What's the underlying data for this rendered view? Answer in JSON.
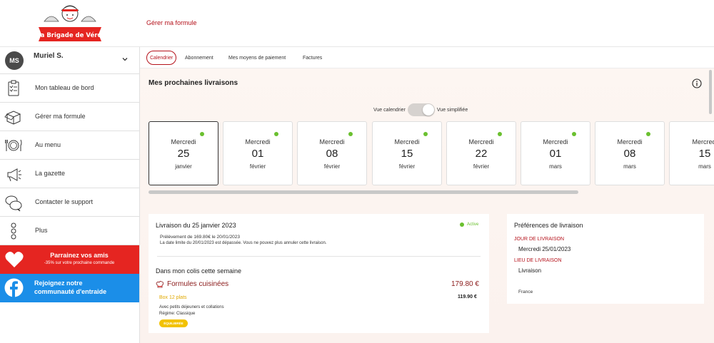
{
  "header": {
    "logo_text": "la Brigade de Véro",
    "link": "Gérer ma formule"
  },
  "sidebar": {
    "user": {
      "initials": "MS",
      "name": "Muriel S."
    },
    "items": [
      {
        "label": "Mon tableau de bord",
        "icon": "clipboard-icon"
      },
      {
        "label": "Gérer ma formule",
        "icon": "box-icon"
      },
      {
        "label": "Au menu",
        "icon": "plate-cutlery-icon"
      },
      {
        "label": "La gazette",
        "icon": "megaphone-icon"
      },
      {
        "label": "Contacter le support",
        "icon": "chat-bubbles-icon"
      },
      {
        "label": "Plus",
        "icon": "more-dots-icon"
      }
    ],
    "promo_referral": {
      "title": "Parrainez vos amis",
      "subtitle": "-35% sur votre prochaine commande"
    },
    "promo_community": {
      "line1": "Rejoignez notre",
      "line2": "communauté d'entraide"
    }
  },
  "tabs": [
    "Calendrier",
    "Abonnement",
    "Mes moyens de paiement",
    "Factures"
  ],
  "main": {
    "title": "Mes prochaines livraisons",
    "toggle_left": "Vue calendrier",
    "toggle_right": "Vue simplifiée",
    "dates": [
      {
        "day": "Mercredi",
        "num": "25",
        "month": "janvier"
      },
      {
        "day": "Mercredi",
        "num": "01",
        "month": "février"
      },
      {
        "day": "Mercredi",
        "num": "08",
        "month": "février"
      },
      {
        "day": "Mercredi",
        "num": "15",
        "month": "février"
      },
      {
        "day": "Mercredi",
        "num": "22",
        "month": "février"
      },
      {
        "day": "Mercredi",
        "num": "01",
        "month": "mars"
      },
      {
        "day": "Mercredi",
        "num": "08",
        "month": "mars"
      },
      {
        "day": "Mercredi",
        "num": "15",
        "month": "mars"
      }
    ]
  },
  "livraison": {
    "title": "Livraison du 25 janvier 2023",
    "status": "Active",
    "prelevement": "Prélèvement de 169.80€ le 20/01/2023",
    "notice": "La date limite du 20/01/2023 est dépassée. Vous ne pouvez plus annuler cette livraison.",
    "colis_title": "Dans mon colis cette semaine",
    "formule_title": "Formules cuisinées",
    "formule_price": "179.80 €",
    "box_label": "Box 12 plats",
    "box_price": "119.90 €",
    "box_desc": "Avec petits déjeuners et collations",
    "regime": "Régime: Classique",
    "badge": "ÉQUILIBRÉE"
  },
  "preferences": {
    "title": "Préférences de livraison",
    "jour_label": "JOUR DE LIVRAISON",
    "jour_value": "Mercredi 25/01/2023",
    "lieu_label": "LIEU DE LIVRAISON",
    "lieu_value": "Livraison",
    "country": "France"
  },
  "colors": {
    "brand_red": "#b5121b",
    "promo_red": "#e52521",
    "facebook_blue": "#1b8ee8",
    "active_green": "#6ac02f",
    "badge_yellow": "#f2c200"
  }
}
